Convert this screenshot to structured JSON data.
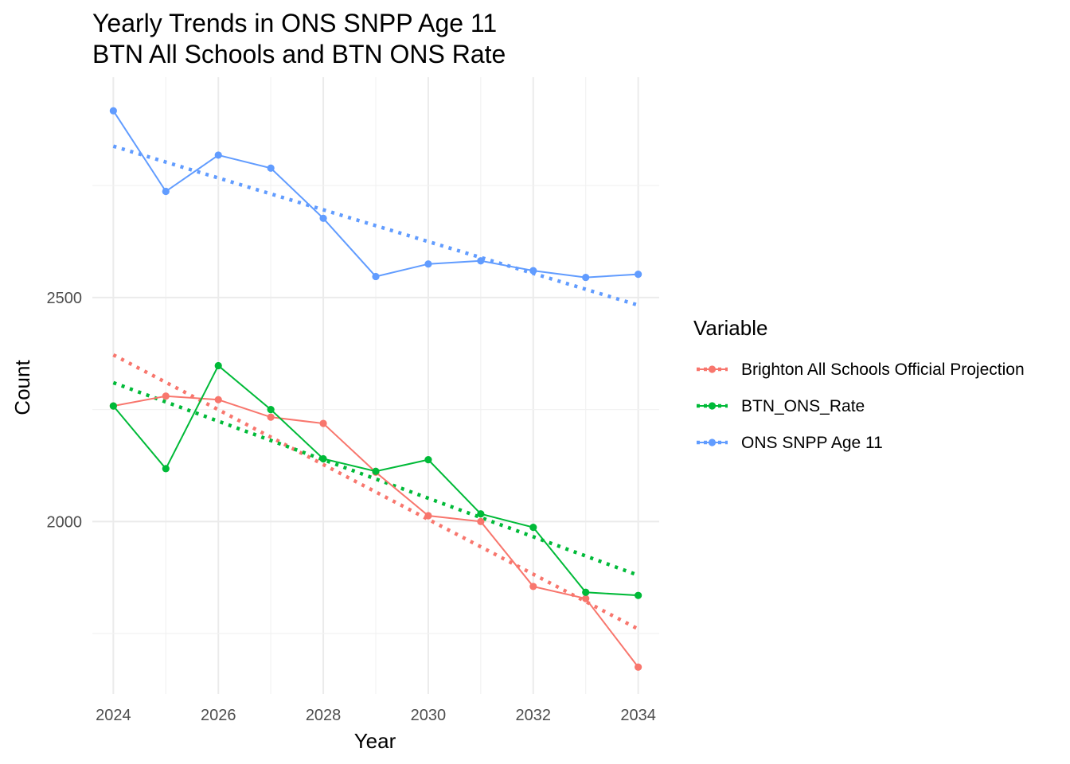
{
  "chart_data": {
    "type": "line",
    "title": "Yearly Trends in ONS SNPP Age 11",
    "subtitle": "BTN All Schools and BTN ONS Rate",
    "xlabel": "Year",
    "ylabel": "Count",
    "xlim": [
      2023.6,
      2034.4
    ],
    "ylim": [
      1615,
      2992
    ],
    "x_ticks": [
      2024,
      2026,
      2028,
      2030,
      2032,
      2034
    ],
    "x_tick_labels": [
      "2024",
      "2026",
      "2028",
      "2030",
      "2032",
      "2034"
    ],
    "y_ticks": [
      2000,
      2500
    ],
    "y_tick_labels": [
      "2000",
      "2500"
    ],
    "y_minor_ticks": [
      1750,
      2250,
      2750
    ],
    "x": [
      2024,
      2025,
      2026,
      2027,
      2028,
      2029,
      2030,
      2031,
      2032,
      2033,
      2034
    ],
    "grid": true,
    "legend": {
      "title": "Variable",
      "placement": "right"
    },
    "series": [
      {
        "name": "Brighton All Schools Official Projection",
        "color": "#F8766D",
        "values": [
          2258,
          2280,
          2272,
          2233,
          2219,
          2110,
          2013,
          2000,
          1855,
          1828,
          1675
        ],
        "trend_values": [
          2372,
          1760
        ]
      },
      {
        "name": "BTN_ONS_Rate",
        "color": "#00BA38",
        "values": [
          2258,
          2118,
          2348,
          2250,
          2140,
          2112,
          2138,
          2017,
          1987,
          1842,
          1835
        ],
        "trend_values": [
          2310,
          1880
        ]
      },
      {
        "name": "ONS SNPP Age 11",
        "color": "#619CFF",
        "values": [
          2917,
          2737,
          2818,
          2789,
          2677,
          2547,
          2575,
          2582,
          2560,
          2545,
          2552
        ],
        "trend_values": [
          2838,
          2483
        ]
      }
    ]
  }
}
